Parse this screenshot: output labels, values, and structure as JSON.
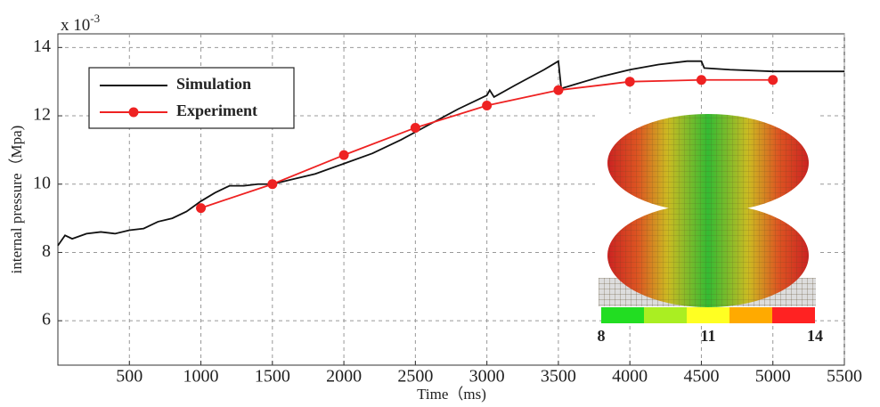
{
  "chart_data": {
    "type": "line",
    "x_label": "Time（ms)",
    "y_label": "internal pressure（Mpa)",
    "exponent_label": {
      "base": "x 10",
      "power": "-3"
    },
    "xlim": [
      0,
      5500
    ],
    "xticks": [
      500,
      1000,
      1500,
      2000,
      2500,
      3000,
      3500,
      4000,
      4500,
      5000,
      5500
    ],
    "ylim": [
      4.7,
      14.4
    ],
    "yticks": [
      6,
      8,
      10,
      12,
      14
    ],
    "grid": true,
    "legend": "upper left",
    "series": [
      {
        "name": "Simulation",
        "color": "#111111",
        "markers": false,
        "x": [
          0,
          50,
          100,
          200,
          300,
          400,
          500,
          600,
          700,
          800,
          900,
          1000,
          1100,
          1200,
          1300,
          1400,
          1500,
          1600,
          1800,
          2000,
          2200,
          2400,
          2600,
          2800,
          3000,
          3020,
          3050,
          3200,
          3400,
          3500,
          3520,
          3600,
          3800,
          4000,
          4200,
          4400,
          4500,
          4520,
          4700,
          5000,
          5500
        ],
        "values": [
          8.2,
          8.5,
          8.4,
          8.55,
          8.6,
          8.55,
          8.65,
          8.7,
          8.9,
          9.0,
          9.2,
          9.5,
          9.75,
          9.95,
          9.95,
          10.0,
          10.0,
          10.1,
          10.3,
          10.6,
          10.9,
          11.3,
          11.75,
          12.2,
          12.6,
          12.75,
          12.55,
          12.9,
          13.35,
          13.6,
          12.8,
          12.9,
          13.15,
          13.35,
          13.5,
          13.6,
          13.6,
          13.4,
          13.35,
          13.3,
          13.3
        ]
      },
      {
        "name": "Experiment",
        "color": "#ee2222",
        "markers": true,
        "x": [
          1000,
          1500,
          2000,
          2500,
          3000,
          3500,
          4000,
          4500,
          5000
        ],
        "values": [
          9.3,
          10.0,
          10.85,
          11.65,
          12.3,
          12.75,
          13.0,
          13.05,
          13.05
        ]
      }
    ],
    "colorbar": {
      "lim": [
        8,
        14
      ],
      "ticks": [
        8,
        11,
        14
      ],
      "colors": [
        "#22dd22",
        "#aaee22",
        "#ffff22",
        "#ffaa00",
        "#ff2222"
      ]
    }
  }
}
